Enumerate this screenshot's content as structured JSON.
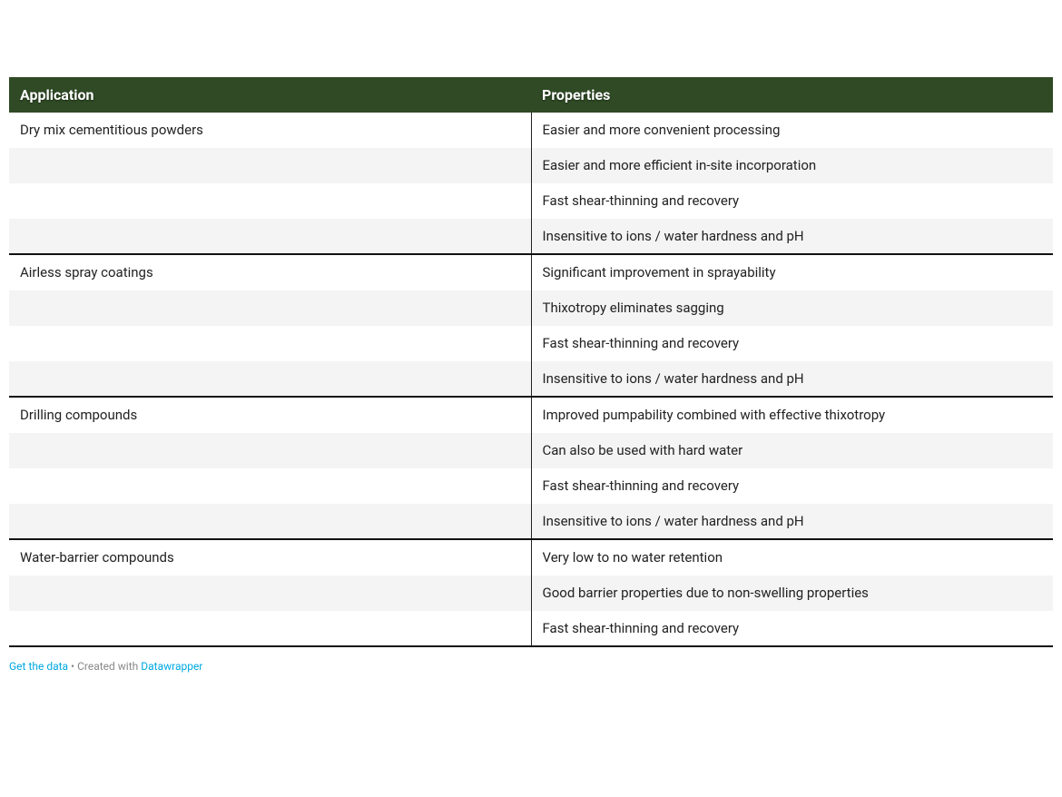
{
  "table": {
    "header_bg": "#2f4a25",
    "header_text_color": "#ffffff",
    "row_alt_bg": "#f4f4f4",
    "row_bg": "#ffffff",
    "columns": [
      "Application",
      "Properties"
    ],
    "groups": [
      {
        "application": "Dry mix cementitious powders",
        "properties": [
          "Easier and more convenient processing",
          "Easier and more efficient in-site incorporation",
          "Fast shear-thinning and recovery",
          "Insensitive to ions / water hardness and pH"
        ]
      },
      {
        "application": "Airless spray coatings",
        "properties": [
          "Significant improvement in sprayability",
          "Thixotropy eliminates sagging",
          "Fast shear-thinning and recovery",
          "Insensitive to ions / water hardness and pH"
        ]
      },
      {
        "application": "Drilling compounds",
        "properties": [
          "Improved pumpability combined with effective thixotropy",
          "Can also be used with hard water",
          "Fast shear-thinning and recovery",
          "Insensitive to ions / water hardness and pH"
        ]
      },
      {
        "application": "Water-barrier compounds",
        "properties": [
          "Very low to no water retention",
          "Good barrier properties due to non-swelling properties",
          "Fast shear-thinning and recovery"
        ]
      }
    ]
  },
  "footer": {
    "get_data": "Get the data",
    "created_with": "Created with",
    "brand": "Datawrapper",
    "link_color": "#00a8e1",
    "muted_color": "#888888"
  }
}
